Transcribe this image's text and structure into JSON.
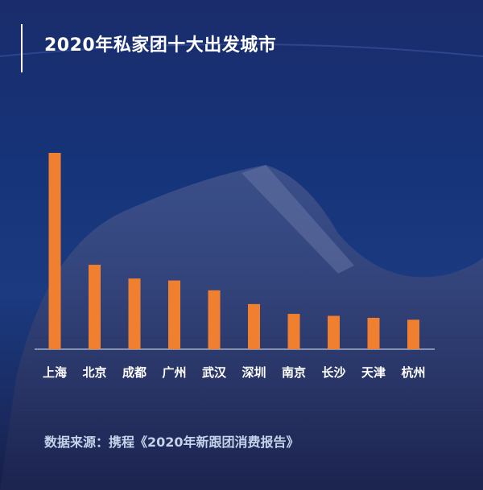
{
  "header": {
    "title": "2020年私家团十大出发城市"
  },
  "chart_data": {
    "type": "bar",
    "title": "2020年私家团十大出发城市",
    "categories": [
      "上海",
      "北京",
      "成都",
      "广州",
      "武汉",
      "深圳",
      "南京",
      "长沙",
      "天津",
      "杭州"
    ],
    "values": [
      100,
      43,
      36,
      35,
      30,
      23,
      18,
      17,
      16,
      15
    ],
    "ylim": [
      0,
      100
    ],
    "xlabel": "",
    "ylabel": "",
    "grid": false,
    "bar_color": "#f08030"
  },
  "footer": {
    "source": "数据来源：携程《2020年新跟团消费报告》"
  }
}
